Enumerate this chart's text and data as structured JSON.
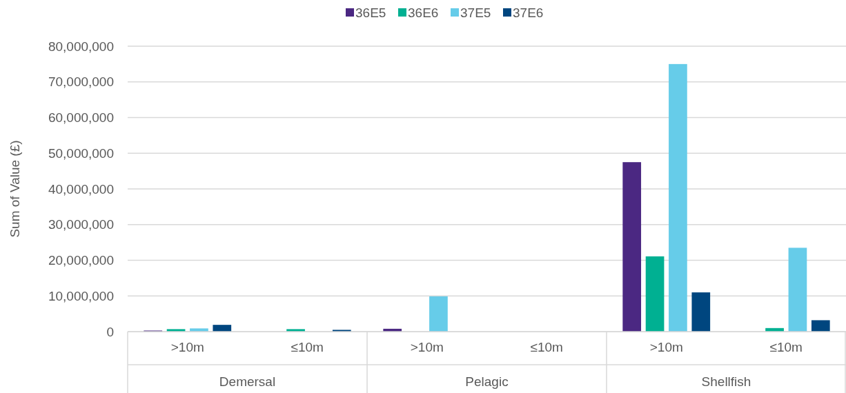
{
  "chart_data": {
    "type": "bar",
    "ylabel": "Sum of Value (£)",
    "categories": [
      ">10m",
      "≤10m",
      ">10m",
      "≤10m",
      ">10m",
      "≤10m"
    ],
    "annotations": [
      "Demersal",
      "Pelagic",
      "Shellfish"
    ],
    "series": [
      {
        "name": "36E5",
        "color": "#4b2882",
        "values": [
          300000,
          null,
          800000,
          null,
          47500000,
          null
        ]
      },
      {
        "name": "36E6",
        "color": "#00b092",
        "values": [
          700000,
          700000,
          null,
          null,
          21100000,
          1000000
        ]
      },
      {
        "name": "37E5",
        "color": "#66cce9",
        "values": [
          900000,
          null,
          9900000,
          null,
          75000000,
          23500000
        ]
      },
      {
        "name": "37E6",
        "color": "#00467f",
        "values": [
          1900000,
          500000,
          null,
          null,
          11000000,
          3200000
        ]
      }
    ],
    "ylim": [
      0,
      80000000
    ],
    "yticks": [
      {
        "value": 0,
        "label": "0"
      },
      {
        "value": 10000000,
        "label": "10,000,000"
      },
      {
        "value": 20000000,
        "label": "20,000,000"
      },
      {
        "value": 30000000,
        "label": "30,000,000"
      },
      {
        "value": 40000000,
        "label": "40,000,000"
      },
      {
        "value": 50000000,
        "label": "50,000,000"
      },
      {
        "value": 60000000,
        "label": "60,000,000"
      },
      {
        "value": 70000000,
        "label": "70,000,000"
      },
      {
        "value": 80000000,
        "label": "80,000,000"
      }
    ],
    "grid": "y",
    "legend": "top"
  }
}
